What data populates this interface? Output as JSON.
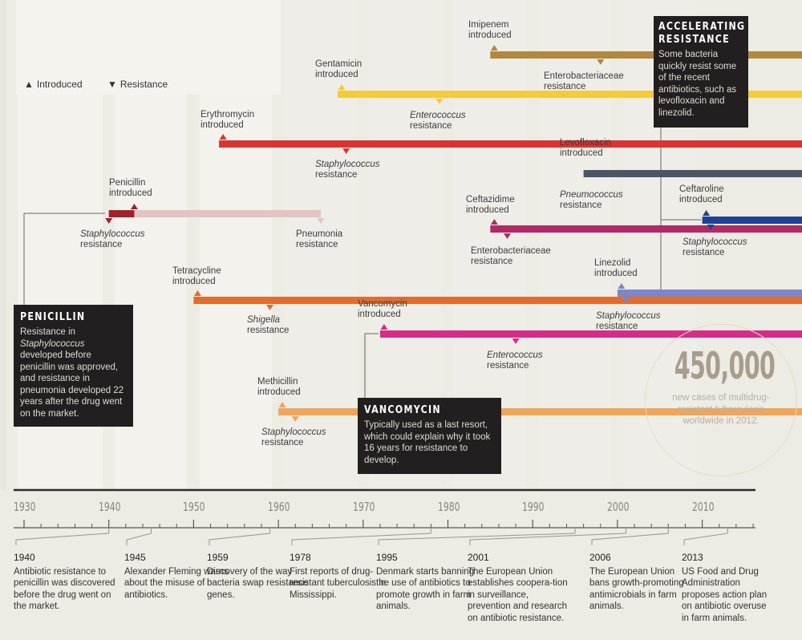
{
  "legend": {
    "introduced_label": "Introduced",
    "resistance_label": "Resistance"
  },
  "chart_data": {
    "type": "timeline",
    "title": "",
    "xlabel": "",
    "xlim": [
      1930,
      2016
    ],
    "xticks": [
      1930,
      1940,
      1950,
      1960,
      1970,
      1980,
      1990,
      2000,
      2010
    ],
    "tick_labels": [
      "1930",
      "1940",
      "1950",
      "1960",
      "1970",
      "1980",
      "1990",
      "2000",
      "2010"
    ],
    "minor_tick_step_years": 2,
    "legend_position": "top-left",
    "series": [
      {
        "name": "Penicillin",
        "introduced": 1943,
        "resistance": [
          {
            "year": 1940,
            "organism": "Staphylococcus",
            "italic": true
          },
          {
            "year": 1965,
            "organism": "Pneumonia",
            "italic": false
          }
        ],
        "color": "#a3202a",
        "faded_color": "#e3c4c2",
        "intro_label": "Penicillin introduced"
      },
      {
        "name": "Tetracycline",
        "introduced": 1950,
        "resistance": [
          {
            "year": 1959,
            "organism": "Shigella",
            "italic": true
          }
        ],
        "color": "#e06c2f",
        "intro_label": "Tetracycline introduced"
      },
      {
        "name": "Erythromycin",
        "introduced": 1953,
        "resistance": [
          {
            "year": 1968,
            "organism": "Staphylococcus",
            "italic": true
          }
        ],
        "color": "#d93430",
        "intro_label": "Erythromycin introduced"
      },
      {
        "name": "Methicillin",
        "introduced": 1960,
        "resistance": [
          {
            "year": 1962,
            "organism": "Staphylococcus",
            "italic": true
          }
        ],
        "color": "#f0a558",
        "intro_label": "Methicillin introduced"
      },
      {
        "name": "Gentamicin",
        "introduced": 1967,
        "resistance": [
          {
            "year": 1979,
            "organism": "Enterococcus",
            "italic": true
          }
        ],
        "color": "#f5cb3c",
        "intro_label": "Gentamicin introduced"
      },
      {
        "name": "Vancomycin",
        "introduced": 1972,
        "resistance": [
          {
            "year": 1988,
            "organism": "Enterococcus",
            "italic": true
          }
        ],
        "color": "#d72b8a",
        "intro_label": "Vancomycin introduced"
      },
      {
        "name": "Imipenem",
        "introduced": 1985,
        "resistance": [
          {
            "year": 1998,
            "organism": "Enterobacteriaceae",
            "italic": false
          }
        ],
        "color": "#b1883e",
        "intro_label": "Imipenem introduced"
      },
      {
        "name": "Ceftazidime",
        "introduced": 1985,
        "resistance": [
          {
            "year": 1987,
            "organism": "Enterobacteriaceae",
            "italic": false
          }
        ],
        "color": "#b12a68",
        "intro_label": "Ceftazidime introduced"
      },
      {
        "name": "Levofloxacin",
        "introduced": 1996,
        "resistance": [
          {
            "year": 1996,
            "organism": "Pneumococcus",
            "italic": true
          }
        ],
        "color": "#4b5568",
        "intro_label": "Levofloxacin introduced"
      },
      {
        "name": "Linezolid",
        "introduced": 2000,
        "resistance": [
          {
            "year": 2001,
            "organism": "Staphylococcus",
            "italic": true
          }
        ],
        "color": "#7c86c8",
        "intro_label": "Linezolid introduced"
      },
      {
        "name": "Ceftaroline",
        "introduced": 2010,
        "resistance": [
          {
            "year": 2011,
            "organism": "Staphylococcus",
            "italic": true
          }
        ],
        "color": "#1f4293",
        "intro_label": "Ceftaroline introduced"
      }
    ],
    "events": [
      {
        "year": 1940,
        "year_label": "1940",
        "text": "Antibiotic resistance to penicillin was discovered before the drug went on the market."
      },
      {
        "year": 1945,
        "year_label": "1945",
        "text": "Alexander Fleming warns about the misuse of antibiotics."
      },
      {
        "year": 1959,
        "year_label": "1959",
        "text": "Discovery of the way bacteria swap resistance genes."
      },
      {
        "year": 1978,
        "year_label": "1978",
        "text": "First reports of drug-resistant tuberculosis in Mississippi."
      },
      {
        "year": 1995,
        "year_label": "1995",
        "text": "Denmark starts banning the use of antibiotics to promote growth in farm animals."
      },
      {
        "year": 2001,
        "year_label": "2001",
        "text": "The European Union establishes coopera-tion in surveillance, prevention and research on antibiotic resistance."
      },
      {
        "year": 2006,
        "year_label": "2006",
        "text": "The European Union bans growth-promoting antimicrobials in farm animals."
      },
      {
        "year": 2013,
        "year_label": "2013",
        "text": "US Food and Drug Administration proposes action plan on antibiotic overuse in farm animals."
      }
    ]
  },
  "labels": {
    "resistance_suffix": "resistance",
    "introduced_suffix": "introduced"
  },
  "callouts": {
    "penicillin": {
      "title": "PENICILLIN",
      "body_parts": [
        "Resistance in ",
        "Staphylococcus",
        " developed before penicillin was approved, and resistance in pneumonia developed 22 years after the drug went on the market."
      ]
    },
    "vancomycin": {
      "title": "VANCOMYCIN",
      "body": "Typically used as a last resort, which could explain why it took 16 years for resistance to develop."
    },
    "accelerating": {
      "title_line1": "ACCELERATING",
      "title_line2": "RESISTANCE",
      "body": "Some bacteria quickly resist some of the recent antibiotics, such as levofloxacin and linezolid."
    }
  },
  "stat": {
    "value": "450,000",
    "caption": "new cases of multidrug-resistant tuberculosis worldwide in 2012."
  },
  "colors": {
    "background": "#ecebe4",
    "stripe": "#f3f2ec",
    "box": "#231f20",
    "axis": "#5a5650",
    "stat": "#a89c8c"
  }
}
